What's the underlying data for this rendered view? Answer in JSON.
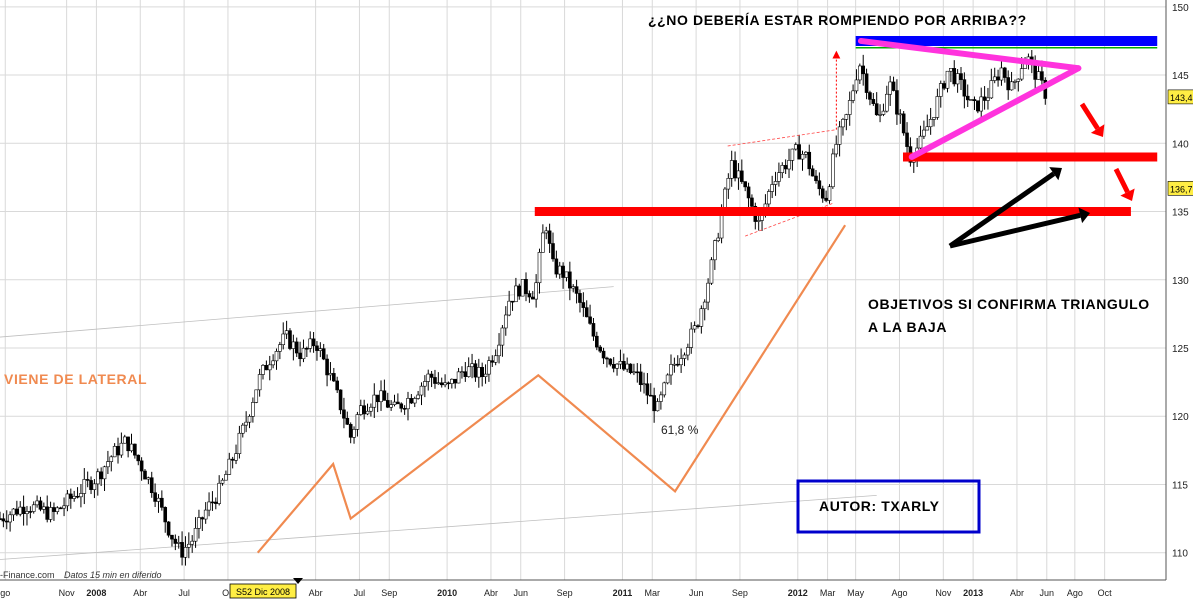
{
  "chart_data": {
    "type": "candlestick",
    "yaxis": {
      "range": [
        108,
        150.5
      ],
      "ticks": [
        110,
        115,
        120,
        125,
        130,
        135,
        140,
        145,
        150
      ]
    },
    "xaxis": {
      "ticks": [
        {
          "label": "go",
          "t": 2007.48,
          "year": false
        },
        {
          "label": "Nov",
          "t": 2007.83,
          "year": false
        },
        {
          "label": "2008",
          "t": 2008.0,
          "year": true
        },
        {
          "label": "Abr",
          "t": 2008.25,
          "year": false
        },
        {
          "label": "Jul",
          "t": 2008.5,
          "year": false
        },
        {
          "label": "Oc",
          "t": 2008.75,
          "year": false
        },
        {
          "label": "Abr",
          "t": 2009.25,
          "year": false
        },
        {
          "label": "Jul",
          "t": 2009.5,
          "year": false
        },
        {
          "label": "Sep",
          "t": 2009.67,
          "year": false
        },
        {
          "label": "2010",
          "t": 2010.0,
          "year": true
        },
        {
          "label": "Abr",
          "t": 2010.25,
          "year": false
        },
        {
          "label": "Jun",
          "t": 2010.42,
          "year": false
        },
        {
          "label": "Sep",
          "t": 2010.67,
          "year": false
        },
        {
          "label": "2011",
          "t": 2011.0,
          "year": true
        },
        {
          "label": "Mar",
          "t": 2011.17,
          "year": false
        },
        {
          "label": "Jun",
          "t": 2011.42,
          "year": false
        },
        {
          "label": "Sep",
          "t": 2011.67,
          "year": false
        },
        {
          "label": "2012",
          "t": 2012.0,
          "year": true
        },
        {
          "label": "Mar",
          "t": 2012.17,
          "year": false
        },
        {
          "label": "May",
          "t": 2012.33,
          "year": false
        },
        {
          "label": "Ago",
          "t": 2012.58,
          "year": false
        },
        {
          "label": "Nov",
          "t": 2012.83,
          "year": false
        },
        {
          "label": "2013",
          "t": 2013.0,
          "year": true
        },
        {
          "label": "Abr",
          "t": 2013.25,
          "year": false
        },
        {
          "label": "Jun",
          "t": 2013.42,
          "year": false
        },
        {
          "label": "Ago",
          "t": 2013.58,
          "year": false
        },
        {
          "label": "Oct",
          "t": 2013.75,
          "year": false
        }
      ],
      "cursor_label": "S52 Dic 2008"
    },
    "price_labels": [
      "143,4",
      "136,7"
    ],
    "price_label_values": [
      143.4,
      136.7
    ],
    "price_path": [
      [
        2007.45,
        112.5
      ],
      [
        2007.6,
        113.5
      ],
      [
        2007.75,
        112.8
      ],
      [
        2007.9,
        114.5
      ],
      [
        2008.0,
        115.5
      ],
      [
        2008.08,
        117.0
      ],
      [
        2008.17,
        118.2
      ],
      [
        2008.25,
        116.5
      ],
      [
        2008.33,
        114.5
      ],
      [
        2008.42,
        111.5
      ],
      [
        2008.48,
        110.0
      ],
      [
        2008.55,
        111.0
      ],
      [
        2008.62,
        113.0
      ],
      [
        2008.7,
        114.5
      ],
      [
        2008.78,
        117.0
      ],
      [
        2008.85,
        119.5
      ],
      [
        2008.92,
        122.5
      ],
      [
        2009.0,
        124.5
      ],
      [
        2009.08,
        125.8
      ],
      [
        2009.17,
        124.5
      ],
      [
        2009.25,
        125.5
      ],
      [
        2009.33,
        123.0
      ],
      [
        2009.4,
        120.5
      ],
      [
        2009.45,
        118.5
      ],
      [
        2009.5,
        120.5
      ],
      [
        2009.6,
        121.5
      ],
      [
        2009.7,
        120.5
      ],
      [
        2009.8,
        121.5
      ],
      [
        2009.9,
        123.0
      ],
      [
        2010.0,
        122.0
      ],
      [
        2010.1,
        123.5
      ],
      [
        2010.2,
        123.0
      ],
      [
        2010.28,
        125.0
      ],
      [
        2010.35,
        128.5
      ],
      [
        2010.42,
        129.5
      ],
      [
        2010.5,
        129.0
      ],
      [
        2010.56,
        134.5
      ],
      [
        2010.6,
        131.0
      ],
      [
        2010.66,
        130.5
      ],
      [
        2010.75,
        128.5
      ],
      [
        2010.83,
        126.0
      ],
      [
        2010.9,
        124.5
      ],
      [
        2011.0,
        123.5
      ],
      [
        2011.08,
        123.0
      ],
      [
        2011.15,
        121.5
      ],
      [
        2011.2,
        120.5
      ],
      [
        2011.28,
        123.5
      ],
      [
        2011.35,
        125.0
      ],
      [
        2011.42,
        126.5
      ],
      [
        2011.5,
        130.5
      ],
      [
        2011.56,
        134.5
      ],
      [
        2011.62,
        138.5
      ],
      [
        2011.7,
        136.5
      ],
      [
        2011.78,
        134.0
      ],
      [
        2011.86,
        137.5
      ],
      [
        2011.93,
        138.5
      ],
      [
        2012.0,
        139.5
      ],
      [
        2012.05,
        139.0
      ],
      [
        2012.1,
        137.0
      ],
      [
        2012.16,
        136.0
      ],
      [
        2012.22,
        140.0
      ],
      [
        2012.28,
        142.0
      ],
      [
        2012.35,
        146.0
      ],
      [
        2012.4,
        144.0
      ],
      [
        2012.46,
        141.5
      ],
      [
        2012.52,
        144.5
      ],
      [
        2012.58,
        142.0
      ],
      [
        2012.64,
        139.0
      ],
      [
        2012.7,
        140.0
      ],
      [
        2012.78,
        142.5
      ],
      [
        2012.86,
        145.5
      ],
      [
        2012.94,
        144.0
      ],
      [
        2013.0,
        142.5
      ],
      [
        2013.08,
        143.5
      ],
      [
        2013.16,
        145.5
      ],
      [
        2013.22,
        144.0
      ],
      [
        2013.3,
        146.5
      ],
      [
        2013.36,
        145.0
      ],
      [
        2013.42,
        143.5
      ]
    ],
    "annotations": {
      "title": "¿¿NO DEBERÍA ESTAR ROMPIENDO POR ARRIBA??",
      "viene": "VIENE DE LATERAL",
      "objetivos_1": "OBJETIVOS SI CONFIRMA TRIANGULO",
      "objetivos_2": "A LA BAJA",
      "autor": "AUTOR: TXARLY",
      "fib": "61,8 %",
      "source": "-Finance.com",
      "delay": "Datos 15 min en diferido"
    },
    "levels": [
      {
        "value": 135.0,
        "from": 2010.5,
        "to": 2013.9,
        "color": "#ff0000"
      },
      {
        "value": 139.0,
        "from": 2012.6,
        "to": 2014.05,
        "color": "#ff0000"
      },
      {
        "value": 147.5,
        "from": 2012.33,
        "to": 2014.05,
        "color": "#0000ff"
      }
    ],
    "zigzag": [
      [
        2008.92,
        110.0
      ],
      [
        2009.35,
        116.5
      ],
      [
        2009.45,
        112.5
      ],
      [
        2010.52,
        123.0
      ],
      [
        2011.3,
        114.5
      ],
      [
        2012.27,
        134.0
      ]
    ],
    "triangle": [
      [
        2012.36,
        147.5
      ],
      [
        2013.6,
        145.5
      ],
      [
        2012.65,
        139.0
      ]
    ],
    "colors": {
      "price": "#000000",
      "zigzag": "#f08a50",
      "triangle": "#ff33dd",
      "support": "#ff0000",
      "resistance": "#0000ff",
      "autor_box": "#0000cc",
      "grid": "#d9d9d9",
      "cursor_label_bg": "#ffee44"
    }
  }
}
